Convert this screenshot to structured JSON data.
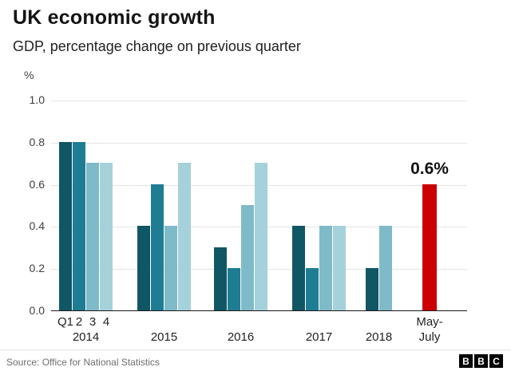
{
  "header": {
    "title": "UK economic growth",
    "subtitle": "GDP, percentage change on previous quarter"
  },
  "chart_data": {
    "type": "bar",
    "title": "UK economic growth",
    "subtitle": "GDP, percentage change on previous quarter",
    "ylabel": "%",
    "xlabel": "",
    "ylim": [
      0,
      1.0
    ],
    "yticks": [
      0,
      0.2,
      0.4,
      0.6,
      0.8,
      1.0
    ],
    "grid": true,
    "legend": "none",
    "quarter_labels": [
      "Q1",
      "2",
      "3",
      "4"
    ],
    "bar_colors": [
      "#115664",
      "#1e7d93",
      "#7fbac8",
      "#a5d1da"
    ],
    "groups": [
      {
        "label": "2014",
        "values": [
          0.8,
          0.8,
          0.7,
          0.7
        ],
        "color_indices": [
          0,
          1,
          2,
          3
        ]
      },
      {
        "label": "2015",
        "values": [
          0.4,
          0.6,
          0.4,
          0.7
        ],
        "color_indices": [
          0,
          1,
          2,
          3
        ]
      },
      {
        "label": "2016",
        "values": [
          0.3,
          0.2,
          0.5,
          0.7
        ],
        "color_indices": [
          0,
          1,
          2,
          3
        ]
      },
      {
        "label": "2017",
        "values": [
          0.4,
          0.2,
          0.4,
          0.4
        ],
        "color_indices": [
          0,
          1,
          2,
          3
        ]
      },
      {
        "label": "2018",
        "values": [
          0.2,
          0.4
        ],
        "color_indices": [
          0,
          2
        ]
      }
    ],
    "highlight": {
      "label": "May-July",
      "label_lines": [
        "May-",
        "July"
      ],
      "value": 0.6,
      "annotation": "0.6%",
      "color": "#cc0000"
    }
  },
  "footer": {
    "source": "Source: Office for National Statistics",
    "logo_letters": [
      "B",
      "B",
      "C"
    ]
  }
}
